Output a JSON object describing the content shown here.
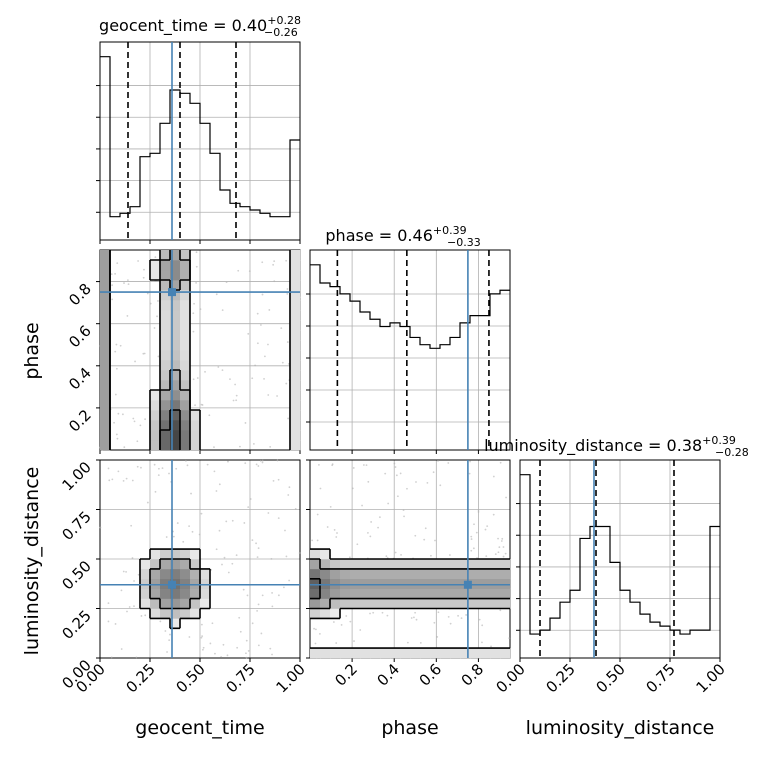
{
  "chart_data": {
    "type": "corner",
    "parameters": [
      "geocent_time",
      "phase",
      "luminosity_distance"
    ],
    "ranges": {
      "geocent_time": [
        0,
        1
      ],
      "phase": [
        0,
        0.95
      ],
      "luminosity_distance": [
        0,
        1
      ]
    },
    "injected": {
      "geocent_time": 0.36,
      "phase": 0.75,
      "luminosity_distance": 0.37
    },
    "colors": {
      "truth": "#4682b4",
      "hist": "#000000",
      "quantile": "#000000",
      "grid": "#b0b0b0",
      "samples": "#b0b0b0"
    },
    "titles": {
      "geocent_time": {
        "name": "geocent_time",
        "eq": " = 0.40",
        "plus": "+0.28",
        "minus": "−0.26"
      },
      "phase": {
        "name": "phase",
        "eq": " = 0.46",
        "plus": "+0.39",
        "minus": "−0.33"
      },
      "luminosity_distance": {
        "name": "luminosity_distance",
        "eq": " = 0.38",
        "plus": "+0.39",
        "minus": "−0.28"
      }
    },
    "quantiles": {
      "geocent_time": [
        0.14,
        0.4,
        0.68
      ],
      "phase": [
        0.13,
        0.46,
        0.85
      ],
      "luminosity_distance": [
        0.1,
        0.38,
        0.77
      ]
    },
    "histograms": {
      "geocent_time": {
        "edges": [
          0,
          0.05,
          0.1,
          0.15,
          0.2,
          0.25,
          0.3,
          0.35,
          0.4,
          0.45,
          0.5,
          0.55,
          0.6,
          0.65,
          0.7,
          0.75,
          0.8,
          0.85,
          0.9,
          0.95,
          1.0
        ],
        "counts": [
          55,
          7,
          8,
          10,
          25,
          26,
          35,
          45,
          44,
          41,
          35,
          26,
          15,
          11,
          10,
          9,
          8,
          7,
          7,
          30
        ]
      },
      "phase": {
        "edges": [
          0,
          0.0475,
          0.095,
          0.1425,
          0.19,
          0.2375,
          0.285,
          0.3325,
          0.38,
          0.4275,
          0.475,
          0.5225,
          0.57,
          0.6175,
          0.665,
          0.7125,
          0.76,
          0.8075,
          0.855,
          0.9025,
          0.95
        ],
        "counts": [
          51,
          46,
          45,
          43,
          41,
          38,
          36,
          34,
          35,
          34,
          31,
          29,
          28,
          29,
          31,
          35,
          37,
          37,
          43,
          44
        ]
      },
      "luminosity_distance": {
        "edges": [
          0,
          0.05,
          0.1,
          0.15,
          0.2,
          0.25,
          0.3,
          0.35,
          0.4,
          0.45,
          0.5,
          0.55,
          0.6,
          0.65,
          0.7,
          0.75,
          0.8,
          0.85,
          0.9,
          0.95,
          1.0
        ],
        "counts": [
          46,
          6,
          7,
          10,
          14,
          17,
          30,
          33,
          33,
          24,
          17,
          14,
          11,
          9,
          8,
          7,
          6,
          7,
          7,
          33
        ]
      }
    },
    "axis_ticks": {
      "geocent_time": [
        "0.00",
        "0.25",
        "0.50",
        "0.75",
        "1.00"
      ],
      "phase": [
        "0.2",
        "0.4",
        "0.6",
        "0.8"
      ],
      "luminosity_distance": [
        "0.00",
        "0.25",
        "0.50",
        "0.75",
        "1.00"
      ]
    },
    "xlabels": [
      "geocent_time",
      "phase",
      "luminosity_distance"
    ],
    "ylabels": [
      "phase",
      "luminosity_distance"
    ]
  }
}
